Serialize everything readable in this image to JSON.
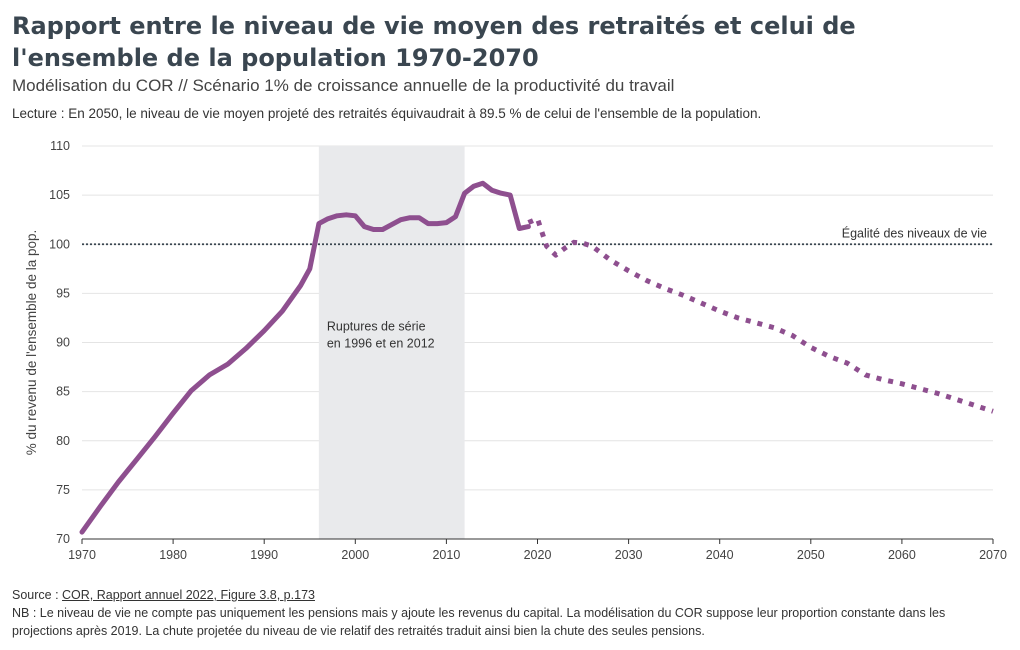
{
  "header": {
    "title": "Rapport entre le niveau de vie moyen des retraités et celui de l'ensemble de la population 1970-2070",
    "subtitle": "Modélisation du COR // Scénario 1% de croissance annuelle de la productivité du travail",
    "lecture": "Lecture : En 2050, le niveau de vie moyen projeté des retraités équivaudrait à 89.5 % de celui de l'ensemble de la population."
  },
  "footer": {
    "source_prefix": "Source : ",
    "source_link": "COR, Rapport annuel 2022, Figure 3.8, p.173",
    "note": "NB : Le niveau de vie ne compte pas uniquement les pensions mais y ajoute les revenus du capital. La modélisation du COR suppose leur proportion constante dans les projections après 2019. La chute projetée du niveau de vie relatif des retraités traduit ainsi bien la chute des seules pensions."
  },
  "chart_data": {
    "type": "line",
    "title": "Rapport entre le niveau de vie moyen des retraités et celui de l'ensemble de la population 1970-2070",
    "xlabel": "",
    "ylabel": "% du revenu de l'ensemble de la pop.",
    "xlim": [
      1970,
      2070
    ],
    "ylim": [
      70,
      110
    ],
    "xticks": [
      1970,
      1980,
      1990,
      2000,
      2010,
      2020,
      2030,
      2040,
      2050,
      2060,
      2070
    ],
    "yticks": [
      70,
      75,
      80,
      85,
      90,
      95,
      100,
      105,
      110
    ],
    "grid": true,
    "line_color": "#8e4f8f",
    "series": [
      {
        "style": "solid",
        "x": [
          1970,
          1972,
          1974,
          1976,
          1978,
          1980,
          1982,
          1984,
          1986,
          1988,
          1990,
          1992,
          1994,
          1995,
          1996,
          1997,
          1998,
          1999,
          2000,
          2001,
          2002,
          2003,
          2004,
          2005,
          2006,
          2007,
          2008,
          2009,
          2010,
          2011,
          2012,
          2013,
          2014,
          2015,
          2016,
          2017,
          2018,
          2019
        ],
        "values": [
          70.7,
          73.3,
          75.8,
          78.1,
          80.4,
          82.8,
          85.1,
          86.7,
          87.8,
          89.4,
          91.2,
          93.2,
          95.8,
          97.5,
          102.1,
          102.6,
          102.9,
          103.0,
          102.9,
          101.8,
          101.5,
          101.5,
          102.0,
          102.5,
          102.7,
          102.7,
          102.1,
          102.1,
          102.2,
          102.8,
          105.2,
          105.9,
          106.2,
          105.5,
          105.2,
          105.0,
          101.6,
          101.8
        ]
      },
      {
        "style": "dotted",
        "x": [
          2019,
          2020,
          2021,
          2022,
          2023,
          2024,
          2025,
          2026,
          2027,
          2028,
          2030,
          2032,
          2034,
          2036,
          2038,
          2040,
          2042,
          2044,
          2046,
          2048,
          2050,
          2052,
          2054,
          2056,
          2058,
          2060,
          2062,
          2064,
          2066,
          2068,
          2070
        ],
        "values": [
          102.2,
          102.6,
          99.8,
          98.9,
          99.6,
          100.2,
          100.1,
          99.8,
          99.1,
          98.4,
          97.3,
          96.3,
          95.5,
          94.8,
          94.0,
          93.2,
          92.5,
          92.0,
          91.5,
          90.7,
          89.5,
          88.6,
          87.9,
          86.7,
          86.2,
          85.8,
          85.3,
          84.8,
          84.2,
          83.6,
          83.0
        ]
      }
    ],
    "reference_line": {
      "y": 100,
      "label": "Égalité des niveaux de vie"
    },
    "shaded_band": {
      "x": [
        1996,
        2012
      ],
      "label_line1": "Ruptures de série",
      "label_line2": "en 1996 et en 2012"
    }
  }
}
